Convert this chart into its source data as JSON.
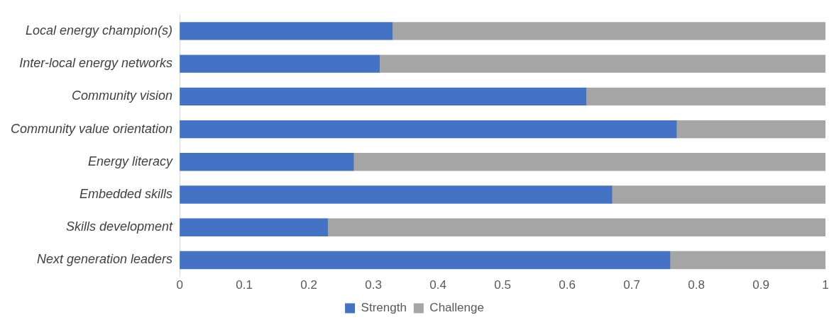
{
  "chart_data": {
    "type": "bar",
    "orientation": "horizontal",
    "stacked": true,
    "categories": [
      "Local energy champion(s)",
      "Inter-local energy networks",
      "Community vision",
      "Community value orientation",
      "Energy literacy",
      "Embedded skills",
      "Skills development",
      "Next generation leaders"
    ],
    "series": [
      {
        "name": "Strength",
        "color": "#4472c4",
        "values": [
          0.33,
          0.31,
          0.63,
          0.77,
          0.27,
          0.67,
          0.23,
          0.76
        ]
      },
      {
        "name": "Challenge",
        "color": "#a5a5a5",
        "values": [
          0.67,
          0.69,
          0.37,
          0.23,
          0.73,
          0.33,
          0.77,
          0.24
        ]
      }
    ],
    "xlim": [
      0,
      1
    ],
    "xticks": [
      0,
      0.1,
      0.2,
      0.3,
      0.4,
      0.5,
      0.6,
      0.7,
      0.8,
      0.9,
      1
    ],
    "grid": false,
    "legend": "bottom"
  }
}
